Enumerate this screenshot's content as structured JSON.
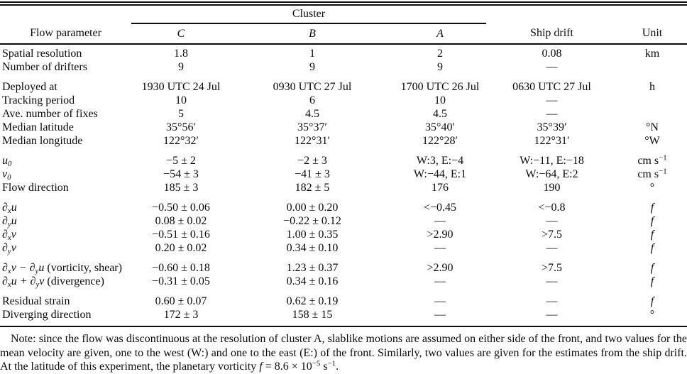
{
  "table": {
    "spanner_label": "Cluster",
    "headers": {
      "param": "Flow parameter",
      "c": "*C*",
      "b": "*B*",
      "a": "*A*",
      "ship": "Ship drift",
      "unit": "Unit"
    },
    "groups": [
      {
        "rows": [
          {
            "param": "Spatial resolution",
            "c": "1.8",
            "b": "1",
            "a": "2",
            "ship": "0.08",
            "unit": "km"
          },
          {
            "param": "Number of drifters",
            "c": "9",
            "b": "9",
            "a": "9",
            "ship": "—",
            "unit": ""
          }
        ]
      },
      {
        "rows": [
          {
            "param": "Deployed at",
            "c": "1930 UTC 24 Jul",
            "b": "0930 UTC 27 Jul",
            "a": "1700 UTC 26 Jul",
            "ship": "0630 UTC 27 Jul",
            "unit": "h"
          },
          {
            "param": "Tracking period",
            "c": "10",
            "b": "6",
            "a": "10",
            "ship": "—",
            "unit": ""
          },
          {
            "param": "Ave. number of fixes",
            "c": "5",
            "b": "4.5",
            "a": "4.5",
            "ship": "—",
            "unit": ""
          },
          {
            "param": "Median latitude",
            "c": "35°56′",
            "b": "35°37′",
            "a": "35°40′",
            "ship": "35°39′",
            "unit": "°N"
          },
          {
            "param": "Median longitude",
            "c": "122°32′",
            "b": "122°31′",
            "a": "122°28′",
            "ship": "122°31′",
            "unit": "°W"
          }
        ]
      },
      {
        "rows": [
          {
            "param": "*u~0~*",
            "c": "−5 ± 2",
            "b": "−2 ± 3",
            "a": "W:3, E:−4",
            "ship": "W:−11, E:−18",
            "unit": "cm s^−1^"
          },
          {
            "param": "*v~0~*",
            "c": "−54 ± 3",
            "b": "−41 ± 3",
            "a": "W:−44, E:1",
            "ship": "W:−64, E:2",
            "unit": "cm s^−1^"
          },
          {
            "param": "Flow direction",
            "c": "185 ± 3",
            "b": "182 ± 5",
            "a": "176",
            "ship": "190",
            "unit": "°"
          }
        ]
      },
      {
        "rows": [
          {
            "param": "*∂~x~u*",
            "c": "−0.50 ± 0.06",
            "b": "0.00 ± 0.20",
            "a": "<−0.45",
            "ship": "<−0.8",
            "unit": "*f*"
          },
          {
            "param": "*∂~y~u*",
            "c": "0.08 ± 0.02",
            "b": "−0.22 ± 0.12",
            "a": "—",
            "ship": "—",
            "unit": "*f*"
          },
          {
            "param": "*∂~x~v*",
            "c": "−0.51 ± 0.16",
            "b": "1.00 ± 0.35",
            "a": ">2.90",
            "ship": ">7.5",
            "unit": "*f*"
          },
          {
            "param": "*∂~y~v*",
            "c": "0.20 ± 0.02",
            "b": "0.34 ± 0.10",
            "a": "—",
            "ship": "—",
            "unit": "*f*"
          }
        ]
      },
      {
        "rows": [
          {
            "param": "*∂~x~v − ∂~y~u* (vorticity, shear)",
            "c": "−0.60 ± 0.18",
            "b": "1.23 ± 0.37",
            "a": ">2.90",
            "ship": ">7.5",
            "unit": "*f*"
          },
          {
            "param": "*∂~x~u + ∂~y~v* (divergence)",
            "c": "−0.31 ± 0.05",
            "b": "0.34 ± 0.16",
            "a": "—",
            "ship": "—",
            "unit": "*f*"
          }
        ]
      },
      {
        "rows": [
          {
            "param": "Residual strain",
            "c": "0.60 ± 0.07",
            "b": "0.62 ± 0.19",
            "a": "—",
            "ship": "—",
            "unit": "*f*"
          },
          {
            "param": "Diverging direction",
            "c": "172 ± 3",
            "b": "158 ± 15",
            "a": "—",
            "ship": "—",
            "unit": "°"
          }
        ]
      }
    ]
  },
  "note": "Note: since the flow was discontinuous at the resolution of cluster A, slablike motions are assumed on either side of the front, and two values for the mean velocity are given, one to the west (W:) and one to the east (E:) of the front. Similarly, two values are given for the estimates from the ship drift. At the latitude of this experiment, the planetary vorticity *f* = 8.6 × 10^−5^ s^−1^."
}
